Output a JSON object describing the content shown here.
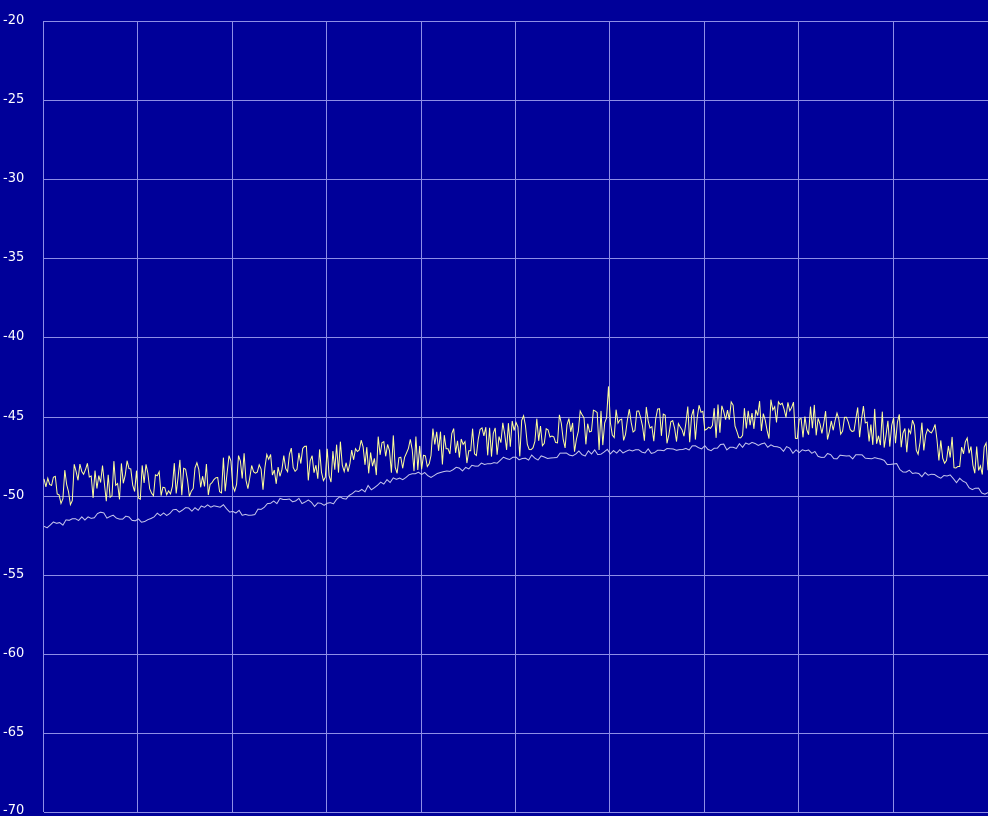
{
  "colors": {
    "background": "#000099",
    "grid": "#8E8EE6",
    "tick_text": "#FFFFFF",
    "trace_live": "#FFFF99",
    "trace_average": "#C8C8EC"
  },
  "chart_data": {
    "type": "line",
    "title": "",
    "xlabel": "",
    "ylabel": "",
    "ylim": [
      -70,
      -20
    ],
    "xlim": [
      0,
      1
    ],
    "y_ticks": [
      "-20",
      "-25",
      "-30",
      "-35",
      "-40",
      "-45",
      "-50",
      "-55",
      "-60",
      "-65",
      "-70"
    ],
    "x_divisions": 10,
    "grid": true,
    "legend": "none",
    "series": [
      {
        "role": "live",
        "x": [
          0.0,
          0.05,
          0.1,
          0.15,
          0.2,
          0.25,
          0.3,
          0.35,
          0.4,
          0.45,
          0.5,
          0.55,
          0.6,
          0.65,
          0.7,
          0.75,
          0.8,
          0.85,
          0.9,
          0.95,
          1.0
        ],
        "values": [
          -49.4,
          -49.2,
          -49.0,
          -48.8,
          -48.6,
          -48.3,
          -47.9,
          -47.5,
          -47.1,
          -46.7,
          -46.3,
          -46.0,
          -45.8,
          -45.6,
          -45.4,
          -45.2,
          -45.1,
          -45.3,
          -45.8,
          -46.6,
          -47.8
        ],
        "noise": 1.3,
        "spikes": [
          {
            "x": 0.598,
            "value": -43.1
          }
        ],
        "points": 500
      },
      {
        "role": "average",
        "x": [
          0.0,
          0.06,
          0.1,
          0.14,
          0.18,
          0.22,
          0.25,
          0.3,
          0.34,
          0.38,
          0.42,
          0.48,
          0.55,
          0.62,
          0.7,
          0.76,
          0.8,
          0.84,
          0.88,
          0.92,
          0.96,
          1.0
        ],
        "values": [
          -52.0,
          -51.2,
          -51.6,
          -51.0,
          -50.6,
          -51.2,
          -50.2,
          -50.6,
          -49.6,
          -48.8,
          -48.6,
          -47.8,
          -47.4,
          -47.2,
          -47.0,
          -46.8,
          -47.2,
          -47.6,
          -47.5,
          -48.6,
          -48.8,
          -50.0
        ],
        "noise": 0.2,
        "points": 300
      }
    ]
  }
}
